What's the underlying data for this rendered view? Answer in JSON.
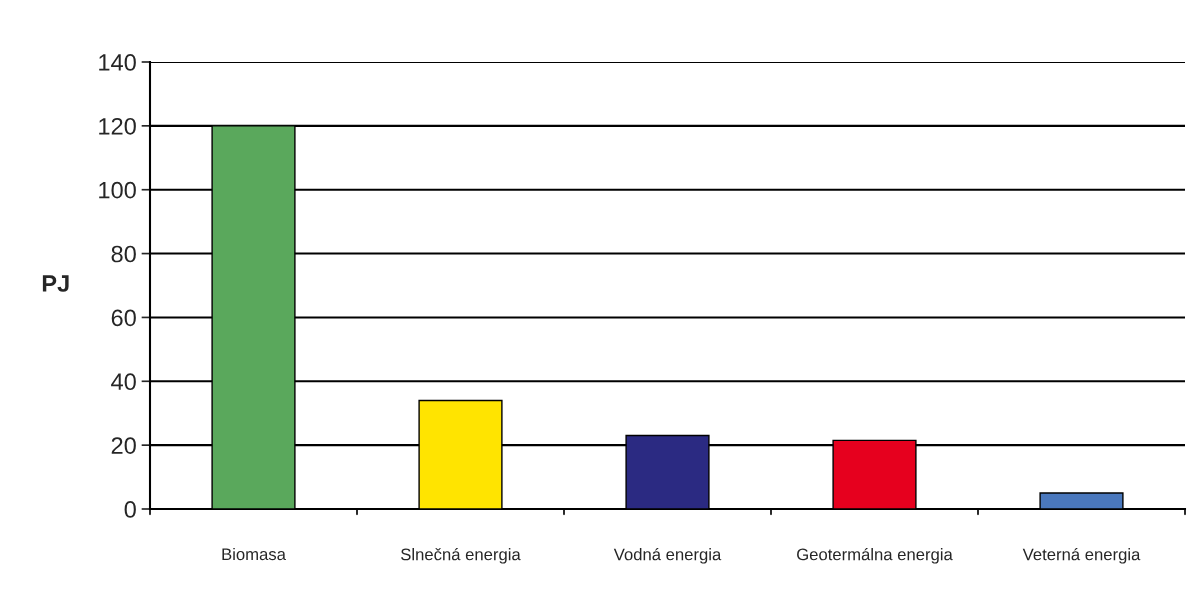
{
  "chart_data": {
    "type": "bar",
    "ylabel": "PJ",
    "categories": [
      "Biomasa",
      "Slnečná energia",
      "Vodná energia",
      "Geotermálna energia",
      "Veterná energia"
    ],
    "values": [
      120,
      34,
      23,
      21.5,
      5
    ],
    "colors": [
      "#5aa85c",
      "#ffe400",
      "#2b2a82",
      "#e6001e",
      "#4a78bd"
    ],
    "ylim": [
      0,
      140
    ],
    "yticks": [
      0,
      20,
      40,
      60,
      80,
      100,
      120,
      140
    ],
    "grid": "y",
    "legend": false
  }
}
